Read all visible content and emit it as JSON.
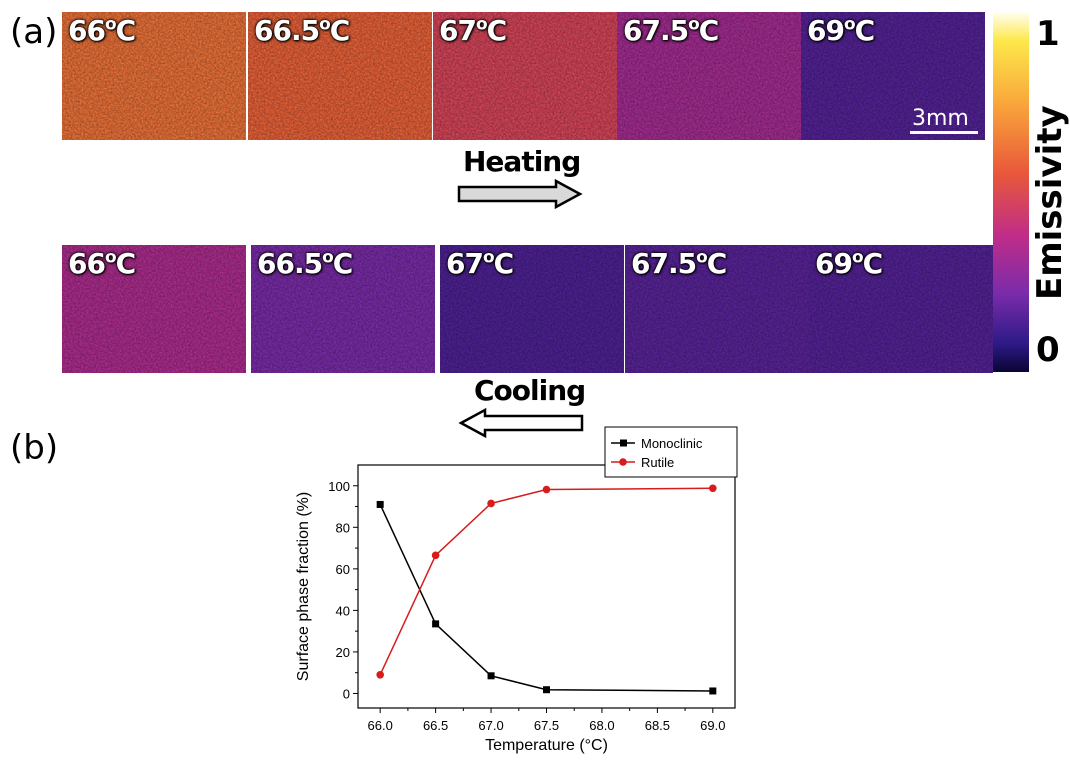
{
  "panel_a": {
    "label": "(a)",
    "heating": {
      "label": "Heating",
      "tiles": [
        {
          "temp": "66",
          "unit": "C",
          "emissivity": 0.62
        },
        {
          "temp": "66.5",
          "unit": "C",
          "emissivity": 0.58
        },
        {
          "temp": "67",
          "unit": "C",
          "emissivity": 0.48
        },
        {
          "temp": "67.5",
          "unit": "C",
          "emissivity": 0.32
        },
        {
          "temp": "69",
          "unit": "C",
          "emissivity": 0.15
        }
      ]
    },
    "cooling": {
      "label": "Cooling",
      "tiles": [
        {
          "temp": "66",
          "unit": "C",
          "emissivity": 0.34
        },
        {
          "temp": "66.5",
          "unit": "C",
          "emissivity": 0.22
        },
        {
          "temp": "67",
          "unit": "C",
          "emissivity": 0.14
        },
        {
          "temp": "67.5",
          "unit": "C",
          "emissivity": 0.16
        },
        {
          "temp": "69",
          "unit": "C",
          "emissivity": 0.15
        }
      ]
    },
    "scale_bar": "3mm",
    "colorbar": {
      "title": "Emissivity",
      "max_label": "1",
      "min_label": "0"
    }
  },
  "panel_b": {
    "label": "(b)"
  },
  "chart_data": {
    "type": "line",
    "xlabel": "Temperature (°C)",
    "ylabel": "Surface phase fraction (%)",
    "xlim": [
      65.8,
      69.2
    ],
    "ylim": [
      -7,
      110
    ],
    "xticks": [
      "66.0",
      "66.5",
      "67.0",
      "67.5",
      "68.0",
      "68.5",
      "69.0"
    ],
    "yticks": [
      "0",
      "20",
      "40",
      "60",
      "80",
      "100"
    ],
    "legend_position": "top-right",
    "series": [
      {
        "name": "Monoclinic",
        "color": "#000000",
        "marker": "square",
        "x": [
          66.0,
          66.5,
          67.0,
          67.5,
          69.0
        ],
        "y": [
          91,
          33.5,
          8.5,
          1.8,
          1.2
        ]
      },
      {
        "name": "Rutile",
        "color": "#d81b1b",
        "marker": "circle",
        "x": [
          66.0,
          66.5,
          67.0,
          67.5,
          69.0
        ],
        "y": [
          9,
          66.5,
          91.5,
          98.2,
          98.8
        ]
      }
    ]
  }
}
